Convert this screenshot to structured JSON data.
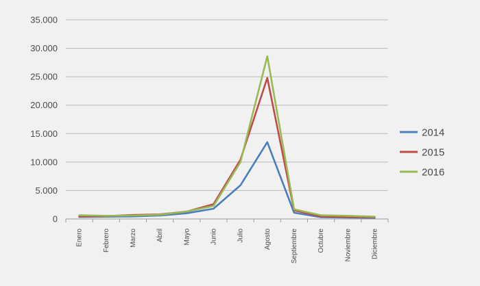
{
  "chart_data": {
    "type": "line",
    "categories": [
      "Enero",
      "Febrero",
      "Marzo",
      "Abril",
      "Mayo",
      "Junio",
      "Julio",
      "Agosto",
      "Septiembre",
      "Octubre",
      "Noviembre",
      "Diciembre"
    ],
    "series": [
      {
        "name": "2014",
        "color": "#4a7ebb",
        "values": [
          350,
          400,
          450,
          600,
          1000,
          1800,
          5900,
          13500,
          1100,
          300,
          250,
          200
        ]
      },
      {
        "name": "2015",
        "color": "#be4b48",
        "values": [
          450,
          500,
          700,
          800,
          1300,
          2600,
          10400,
          24800,
          1500,
          450,
          350,
          300
        ]
      },
      {
        "name": "2016",
        "color": "#98b954",
        "values": [
          650,
          550,
          600,
          750,
          1300,
          2300,
          10000,
          28600,
          1700,
          650,
          550,
          400
        ]
      }
    ],
    "yticks": [
      "0",
      "5.000",
      "10.000",
      "15.000",
      "20.000",
      "25.000",
      "30.000",
      "35.000"
    ],
    "ylim": [
      0,
      35000
    ],
    "grid": true,
    "legend_position": "right"
  }
}
